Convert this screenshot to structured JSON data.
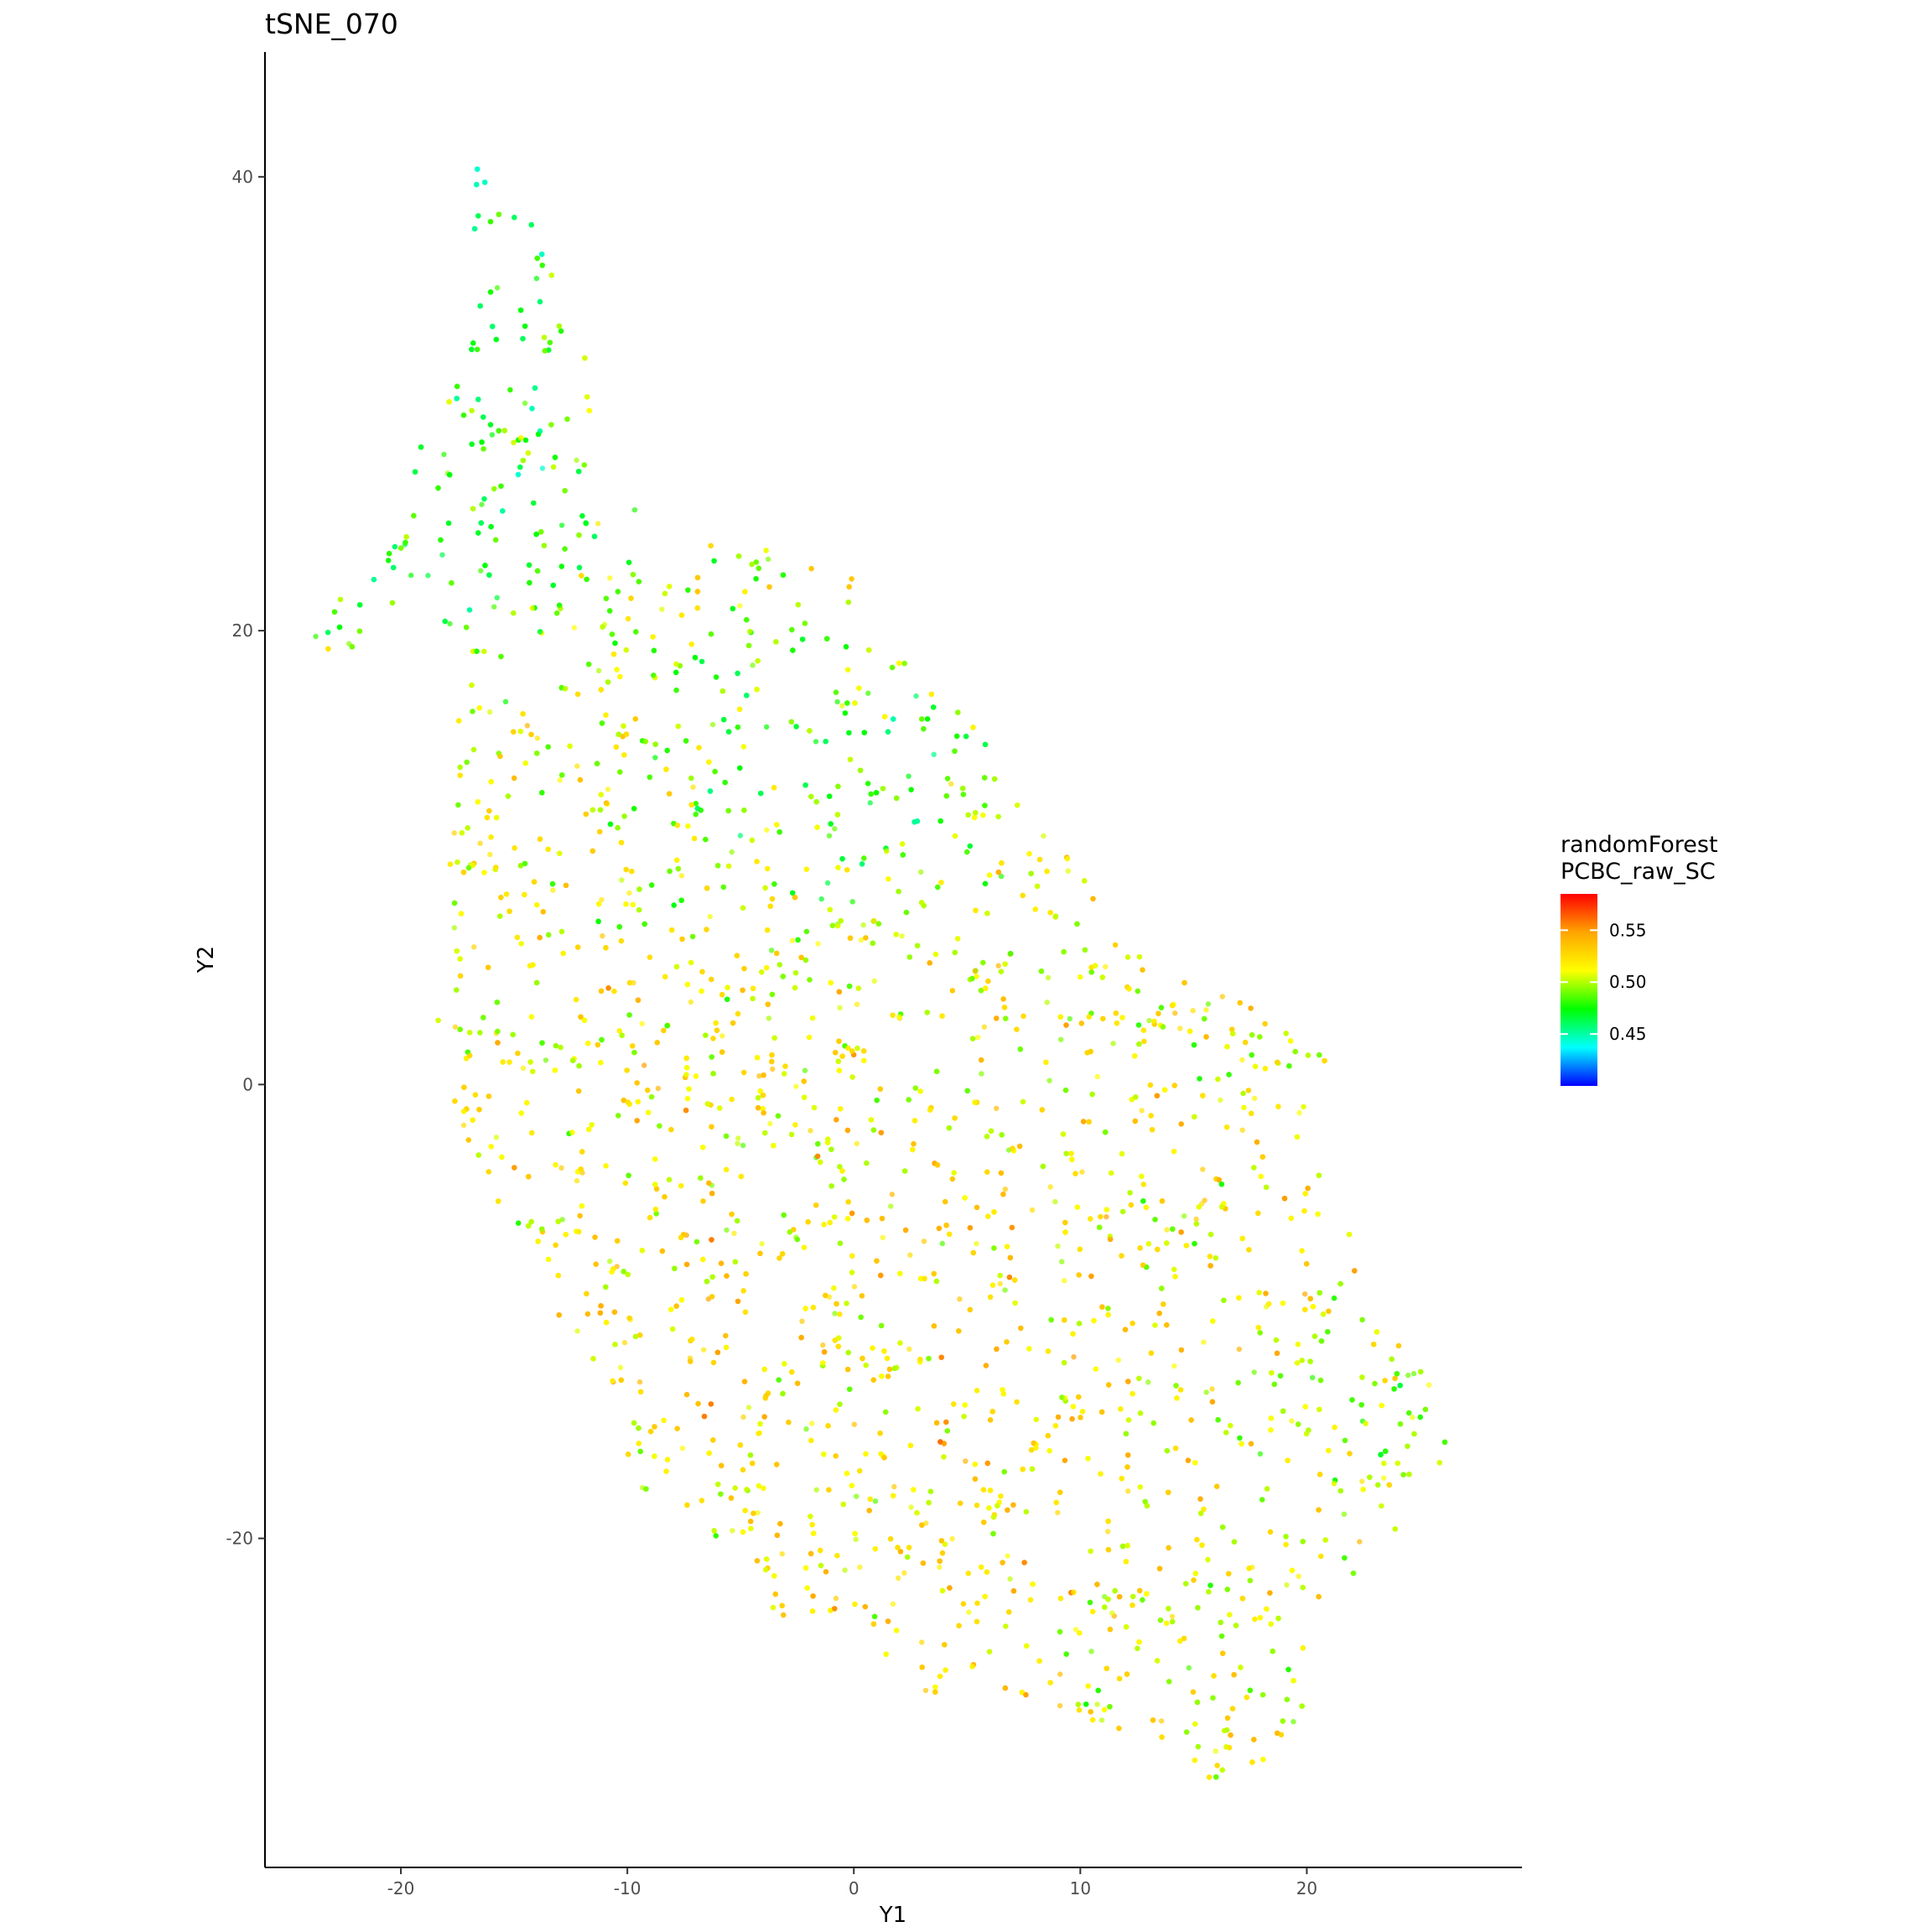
{
  "chart_data": {
    "type": "scatter",
    "title": "tSNE_070",
    "xlabel": "Y1",
    "ylabel": "Y2",
    "xlim": [
      -26,
      29.5
    ],
    "ylim": [
      -34.5,
      45.5
    ],
    "x_ticks": [
      -20,
      -10,
      0,
      10,
      20
    ],
    "x_tick_labels": [
      "-20",
      "-10",
      "0",
      "10",
      "20"
    ],
    "y_ticks": [
      -20,
      0,
      20,
      40
    ],
    "y_tick_labels": [
      "-20",
      "0",
      "20",
      "40"
    ],
    "grid": false,
    "legend": {
      "title_lines": [
        "randomForest",
        "PCBC_raw_SC"
      ],
      "position": "right",
      "type": "colorbar",
      "range": [
        0.4,
        0.585
      ],
      "ticks": [
        0.45,
        0.5,
        0.55
      ],
      "tick_labels": [
        "0.45",
        "0.50",
        "0.55"
      ],
      "colors": [
        "#0000ff",
        "#00ffff",
        "#00ff00",
        "#ffff00",
        "#ffa500",
        "#ff0000"
      ]
    },
    "point_alpha": 0.7,
    "n_points": 6000,
    "region_polygon": [
      [
        -16.5,
        42
      ],
      [
        -15,
        39.5
      ],
      [
        -13,
        35.5
      ],
      [
        -12,
        33
      ],
      [
        -11,
        30
      ],
      [
        -11.5,
        27
      ],
      [
        -10,
        25.5
      ],
      [
        -7,
        24
      ],
      [
        -3,
        23.5
      ],
      [
        0,
        22.5
      ],
      [
        3,
        18.5
      ],
      [
        5,
        17
      ],
      [
        7,
        13
      ],
      [
        8.5,
        11
      ],
      [
        10,
        9.5
      ],
      [
        11,
        8
      ],
      [
        12,
        6
      ],
      [
        15,
        4.5
      ],
      [
        18,
        3.5
      ],
      [
        21,
        2
      ],
      [
        21,
        -1.5
      ],
      [
        20.5,
        -6
      ],
      [
        22,
        -6.5
      ],
      [
        23,
        -9.5
      ],
      [
        24,
        -11
      ],
      [
        25,
        -12
      ],
      [
        26,
        -14
      ],
      [
        27,
        -15
      ],
      [
        25,
        -18.5
      ],
      [
        22.5,
        -21
      ],
      [
        21.5,
        -23.5
      ],
      [
        20,
        -24.5
      ],
      [
        20,
        -27.5
      ],
      [
        18,
        -30
      ],
      [
        16.5,
        -31
      ],
      [
        14,
        -30
      ],
      [
        12,
        -28.5
      ],
      [
        9,
        -27.5
      ],
      [
        7,
        -27
      ],
      [
        5,
        -26.5
      ],
      [
        3,
        -27
      ],
      [
        0,
        -23.5
      ],
      [
        -3,
        -23.5
      ],
      [
        -5,
        -22
      ],
      [
        -6,
        -20
      ],
      [
        -8,
        -19.5
      ],
      [
        -10,
        -19
      ],
      [
        -10,
        -14
      ],
      [
        -11,
        -13
      ],
      [
        -13,
        -11
      ],
      [
        -14,
        -7
      ],
      [
        -16,
        -5
      ],
      [
        -18,
        -1
      ],
      [
        -18.5,
        2
      ],
      [
        -18,
        5
      ],
      [
        -18,
        8
      ],
      [
        -17.5,
        13
      ],
      [
        -18,
        16
      ],
      [
        -17,
        19.5
      ],
      [
        -18.5,
        20.5
      ],
      [
        -21,
        21
      ],
      [
        -22,
        18.5
      ],
      [
        -24,
        19.5
      ],
      [
        -22,
        22.5
      ],
      [
        -21,
        27
      ],
      [
        -18,
        29
      ],
      [
        -17.5,
        34
      ],
      [
        -17,
        38.5
      ]
    ],
    "value_hotspots": [
      {
        "x": -16.5,
        "y": 37,
        "r": 6,
        "value": 0.465
      },
      {
        "x": -15,
        "y": 29,
        "r": 6,
        "value": 0.48
      },
      {
        "x": -20,
        "y": 22,
        "r": 4,
        "value": 0.475
      },
      {
        "x": -3,
        "y": 15,
        "r": 5,
        "value": 0.49
      },
      {
        "x": 1,
        "y": 14,
        "r": 4,
        "value": 0.485
      },
      {
        "x": 24,
        "y": -16,
        "r": 3,
        "value": 0.49
      },
      {
        "x": 6,
        "y": -18,
        "r": 6,
        "value": 0.525
      },
      {
        "x": -8,
        "y": -8,
        "r": 6,
        "value": 0.52
      },
      {
        "x": 16,
        "y": -25,
        "r": 5,
        "value": 0.505
      }
    ],
    "base_value": 0.515
  }
}
